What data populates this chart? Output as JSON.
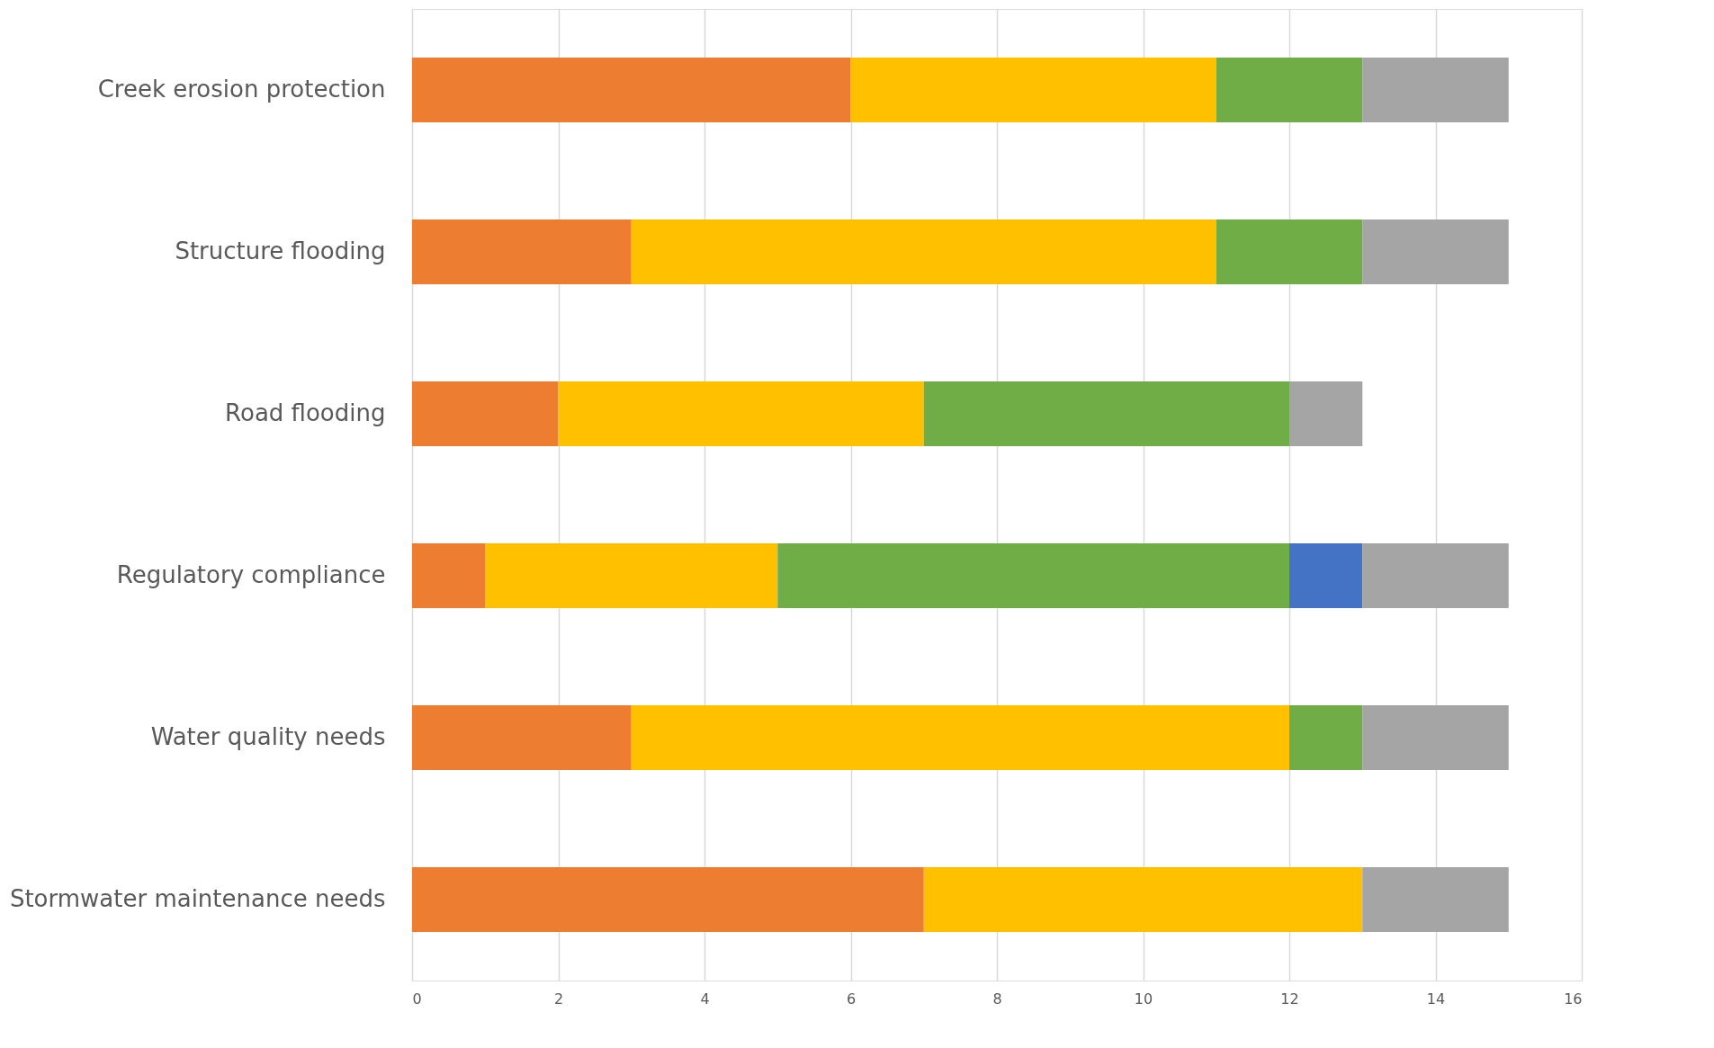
{
  "chart_data": {
    "type": "bar",
    "orientation": "horizontal",
    "stacked": true,
    "legend": false,
    "grid": "x",
    "categories": [
      "Creek erosion protection",
      "Structure flooding",
      "Road flooding",
      "Regulatory compliance",
      "Water quality needs",
      "Stormwater maintenance needs"
    ],
    "series": [
      {
        "color": "#ed7d31",
        "values": [
          6,
          3,
          2,
          1,
          3,
          7
        ]
      },
      {
        "color": "#ffc000",
        "values": [
          5,
          8,
          5,
          4,
          9,
          6
        ]
      },
      {
        "color": "#70ad47",
        "values": [
          2,
          2,
          5,
          7,
          1,
          null
        ]
      },
      {
        "color": "#4472c4",
        "values": [
          null,
          null,
          null,
          1,
          null,
          null
        ]
      },
      {
        "color": "#a5a5a5",
        "values": [
          2,
          2,
          1,
          2,
          2,
          2
        ]
      }
    ],
    "xlim": [
      0,
      16
    ],
    "xticks": [
      0,
      2,
      4,
      6,
      8,
      10,
      12,
      14,
      16
    ]
  }
}
